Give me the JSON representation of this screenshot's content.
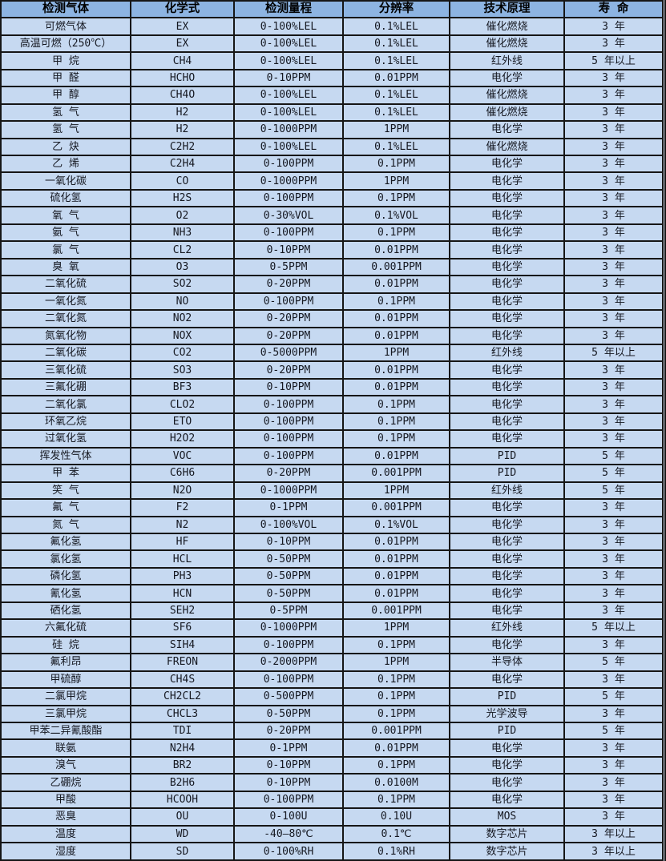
{
  "colors": {
    "header_bg": "#8DB4E2",
    "row_bg": "#C6D9F1",
    "border": "#161616",
    "text": "#151821"
  },
  "chart_data": {
    "type": "table",
    "columns": [
      "检测气体",
      "化学式",
      "检测量程",
      "分辨率",
      "技术原理",
      "寿 命"
    ],
    "rows": [
      [
        "可燃气体",
        "EX",
        "0-100%LEL",
        "0.1%LEL",
        "催化燃烧",
        "3 年"
      ],
      [
        "高温可燃（250℃）",
        "EX",
        "0-100%LEL",
        "0.1%LEL",
        "催化燃烧",
        "3 年"
      ],
      [
        "甲 烷",
        "CH4",
        "0-100%LEL",
        "0.1%LEL",
        "红外线",
        "5 年以上"
      ],
      [
        "甲 醛",
        "HCHO",
        "0-10PPM",
        "0.01PPM",
        "电化学",
        "3 年"
      ],
      [
        "甲 醇",
        "CH4O",
        "0-100%LEL",
        "0.1%LEL",
        "催化燃烧",
        "3 年"
      ],
      [
        "氢 气",
        "H2",
        "0-100%LEL",
        "0.1%LEL",
        "催化燃烧",
        "3 年"
      ],
      [
        "氢 气",
        "H2",
        "0-1000PPM",
        "1PPM",
        "电化学",
        "3 年"
      ],
      [
        "乙 炔",
        "C2H2",
        "0-100%LEL",
        "0.1%LEL",
        "催化燃烧",
        "3 年"
      ],
      [
        "乙 烯",
        "C2H4",
        "0-100PPM",
        "0.1PPM",
        "电化学",
        "3 年"
      ],
      [
        "一氧化碳",
        "CO",
        "0-1000PPM",
        "1PPM",
        "电化学",
        "3 年"
      ],
      [
        "硫化氢",
        "H2S",
        "0-100PPM",
        "0.1PPM",
        "电化学",
        "3 年"
      ],
      [
        "氧 气",
        "O2",
        "0-30%VOL",
        "0.1%VOL",
        "电化学",
        "3 年"
      ],
      [
        "氨 气",
        "NH3",
        "0-100PPM",
        "0.1PPM",
        "电化学",
        "3 年"
      ],
      [
        "氯 气",
        "CL2",
        "0-10PPM",
        "0.01PPM",
        "电化学",
        "3 年"
      ],
      [
        "臭 氧",
        "O3",
        "0-5PPM",
        "0.001PPM",
        "电化学",
        "3 年"
      ],
      [
        "二氧化硫",
        "SO2",
        "0-20PPM",
        "0.01PPM",
        "电化学",
        "3 年"
      ],
      [
        "一氧化氮",
        "NO",
        "0-100PPM",
        "0.1PPM",
        "电化学",
        "3 年"
      ],
      [
        "二氧化氮",
        "NO2",
        "0-20PPM",
        "0.01PPM",
        "电化学",
        "3 年"
      ],
      [
        "氮氧化物",
        "NOX",
        "0-20PPM",
        "0.01PPM",
        "电化学",
        "3 年"
      ],
      [
        "二氧化碳",
        "CO2",
        "0-5000PPM",
        "1PPM",
        "红外线",
        "5 年以上"
      ],
      [
        "三氧化硫",
        "SO3",
        "0-20PPM",
        "0.01PPM",
        "电化学",
        "3 年"
      ],
      [
        "三氟化硼",
        "BF3",
        "0-10PPM",
        "0.01PPM",
        "电化学",
        "3 年"
      ],
      [
        "二氧化氯",
        "CLO2",
        "0-100PPM",
        "0.1PPM",
        "电化学",
        "3 年"
      ],
      [
        "环氧乙烷",
        "ETO",
        "0-100PPM",
        "0.1PPM",
        "电化学",
        "3 年"
      ],
      [
        "过氧化氢",
        "H2O2",
        "0-100PPM",
        "0.1PPM",
        "电化学",
        "3 年"
      ],
      [
        "挥发性气体",
        "VOC",
        "0-100PPM",
        "0.01PPM",
        "PID",
        "5 年"
      ],
      [
        "甲 苯",
        "C6H6",
        "0-20PPM",
        "0.001PPM",
        "PID",
        "5 年"
      ],
      [
        "笑 气",
        "N2O",
        "0-1000PPM",
        "1PPM",
        "红外线",
        "5 年"
      ],
      [
        "氟 气",
        "F2",
        "0-1PPM",
        "0.001PPM",
        "电化学",
        "3 年"
      ],
      [
        "氮 气",
        "N2",
        "0-100%VOL",
        "0.1%VOL",
        "电化学",
        "3 年"
      ],
      [
        "氟化氢",
        "HF",
        "0-10PPM",
        "0.01PPM",
        "电化学",
        "3 年"
      ],
      [
        "氯化氢",
        "HCL",
        "0-50PPM",
        "0.01PPM",
        "电化学",
        "3 年"
      ],
      [
        "磷化氢",
        "PH3",
        "0-50PPM",
        "0.01PPM",
        "电化学",
        "3 年"
      ],
      [
        "氰化氢",
        "HCN",
        "0-50PPM",
        "0.01PPM",
        "电化学",
        "3 年"
      ],
      [
        "硒化氢",
        "SEH2",
        "0-5PPM",
        "0.001PPM",
        "电化学",
        "3 年"
      ],
      [
        "六氟化硫",
        "SF6",
        "0-1000PPM",
        "1PPM",
        "红外线",
        "5 年以上"
      ],
      [
        "硅 烷",
        "SIH4",
        "0-100PPM",
        "0.1PPM",
        "电化学",
        "3 年"
      ],
      [
        "氟利昂",
        "FREON",
        "0-2000PPM",
        "1PPM",
        "半导体",
        "5 年"
      ],
      [
        "甲硫醇",
        "CH4S",
        "0-100PPM",
        "0.1PPM",
        "电化学",
        "3 年"
      ],
      [
        "二氯甲烷",
        "CH2CL2",
        "0-500PPM",
        "0.1PPM",
        "PID",
        "5 年"
      ],
      [
        "三氯甲烷",
        "CHCL3",
        "0-50PPM",
        "0.1PPM",
        "光学波导",
        "3 年"
      ],
      [
        "甲苯二异氰酸酯",
        "TDI",
        "0-20PPM",
        "0.001PPM",
        "PID",
        "5 年"
      ],
      [
        "联氨",
        "N2H4",
        "0-1PPM",
        "0.01PPM",
        "电化学",
        "3 年"
      ],
      [
        "溴气",
        "BR2",
        "0-10PPM",
        "0.1PPM",
        "电化学",
        "3 年"
      ],
      [
        "乙硼烷",
        "B2H6",
        "0-10PPM",
        "0.0100M",
        "电化学",
        "3 年"
      ],
      [
        "甲酸",
        "HCOOH",
        "0-100PPM",
        "0.1PPM",
        "电化学",
        "3 年"
      ],
      [
        "恶臭",
        "OU",
        "0-100U",
        "0.10U",
        "MOS",
        "3 年"
      ],
      [
        "温度",
        "WD",
        "-40—80℃",
        "0.1℃",
        "数字芯片",
        "3 年以上"
      ],
      [
        "湿度",
        "SD",
        "0-100%RH",
        "0.1%RH",
        "数字芯片",
        "3 年以上"
      ]
    ]
  }
}
